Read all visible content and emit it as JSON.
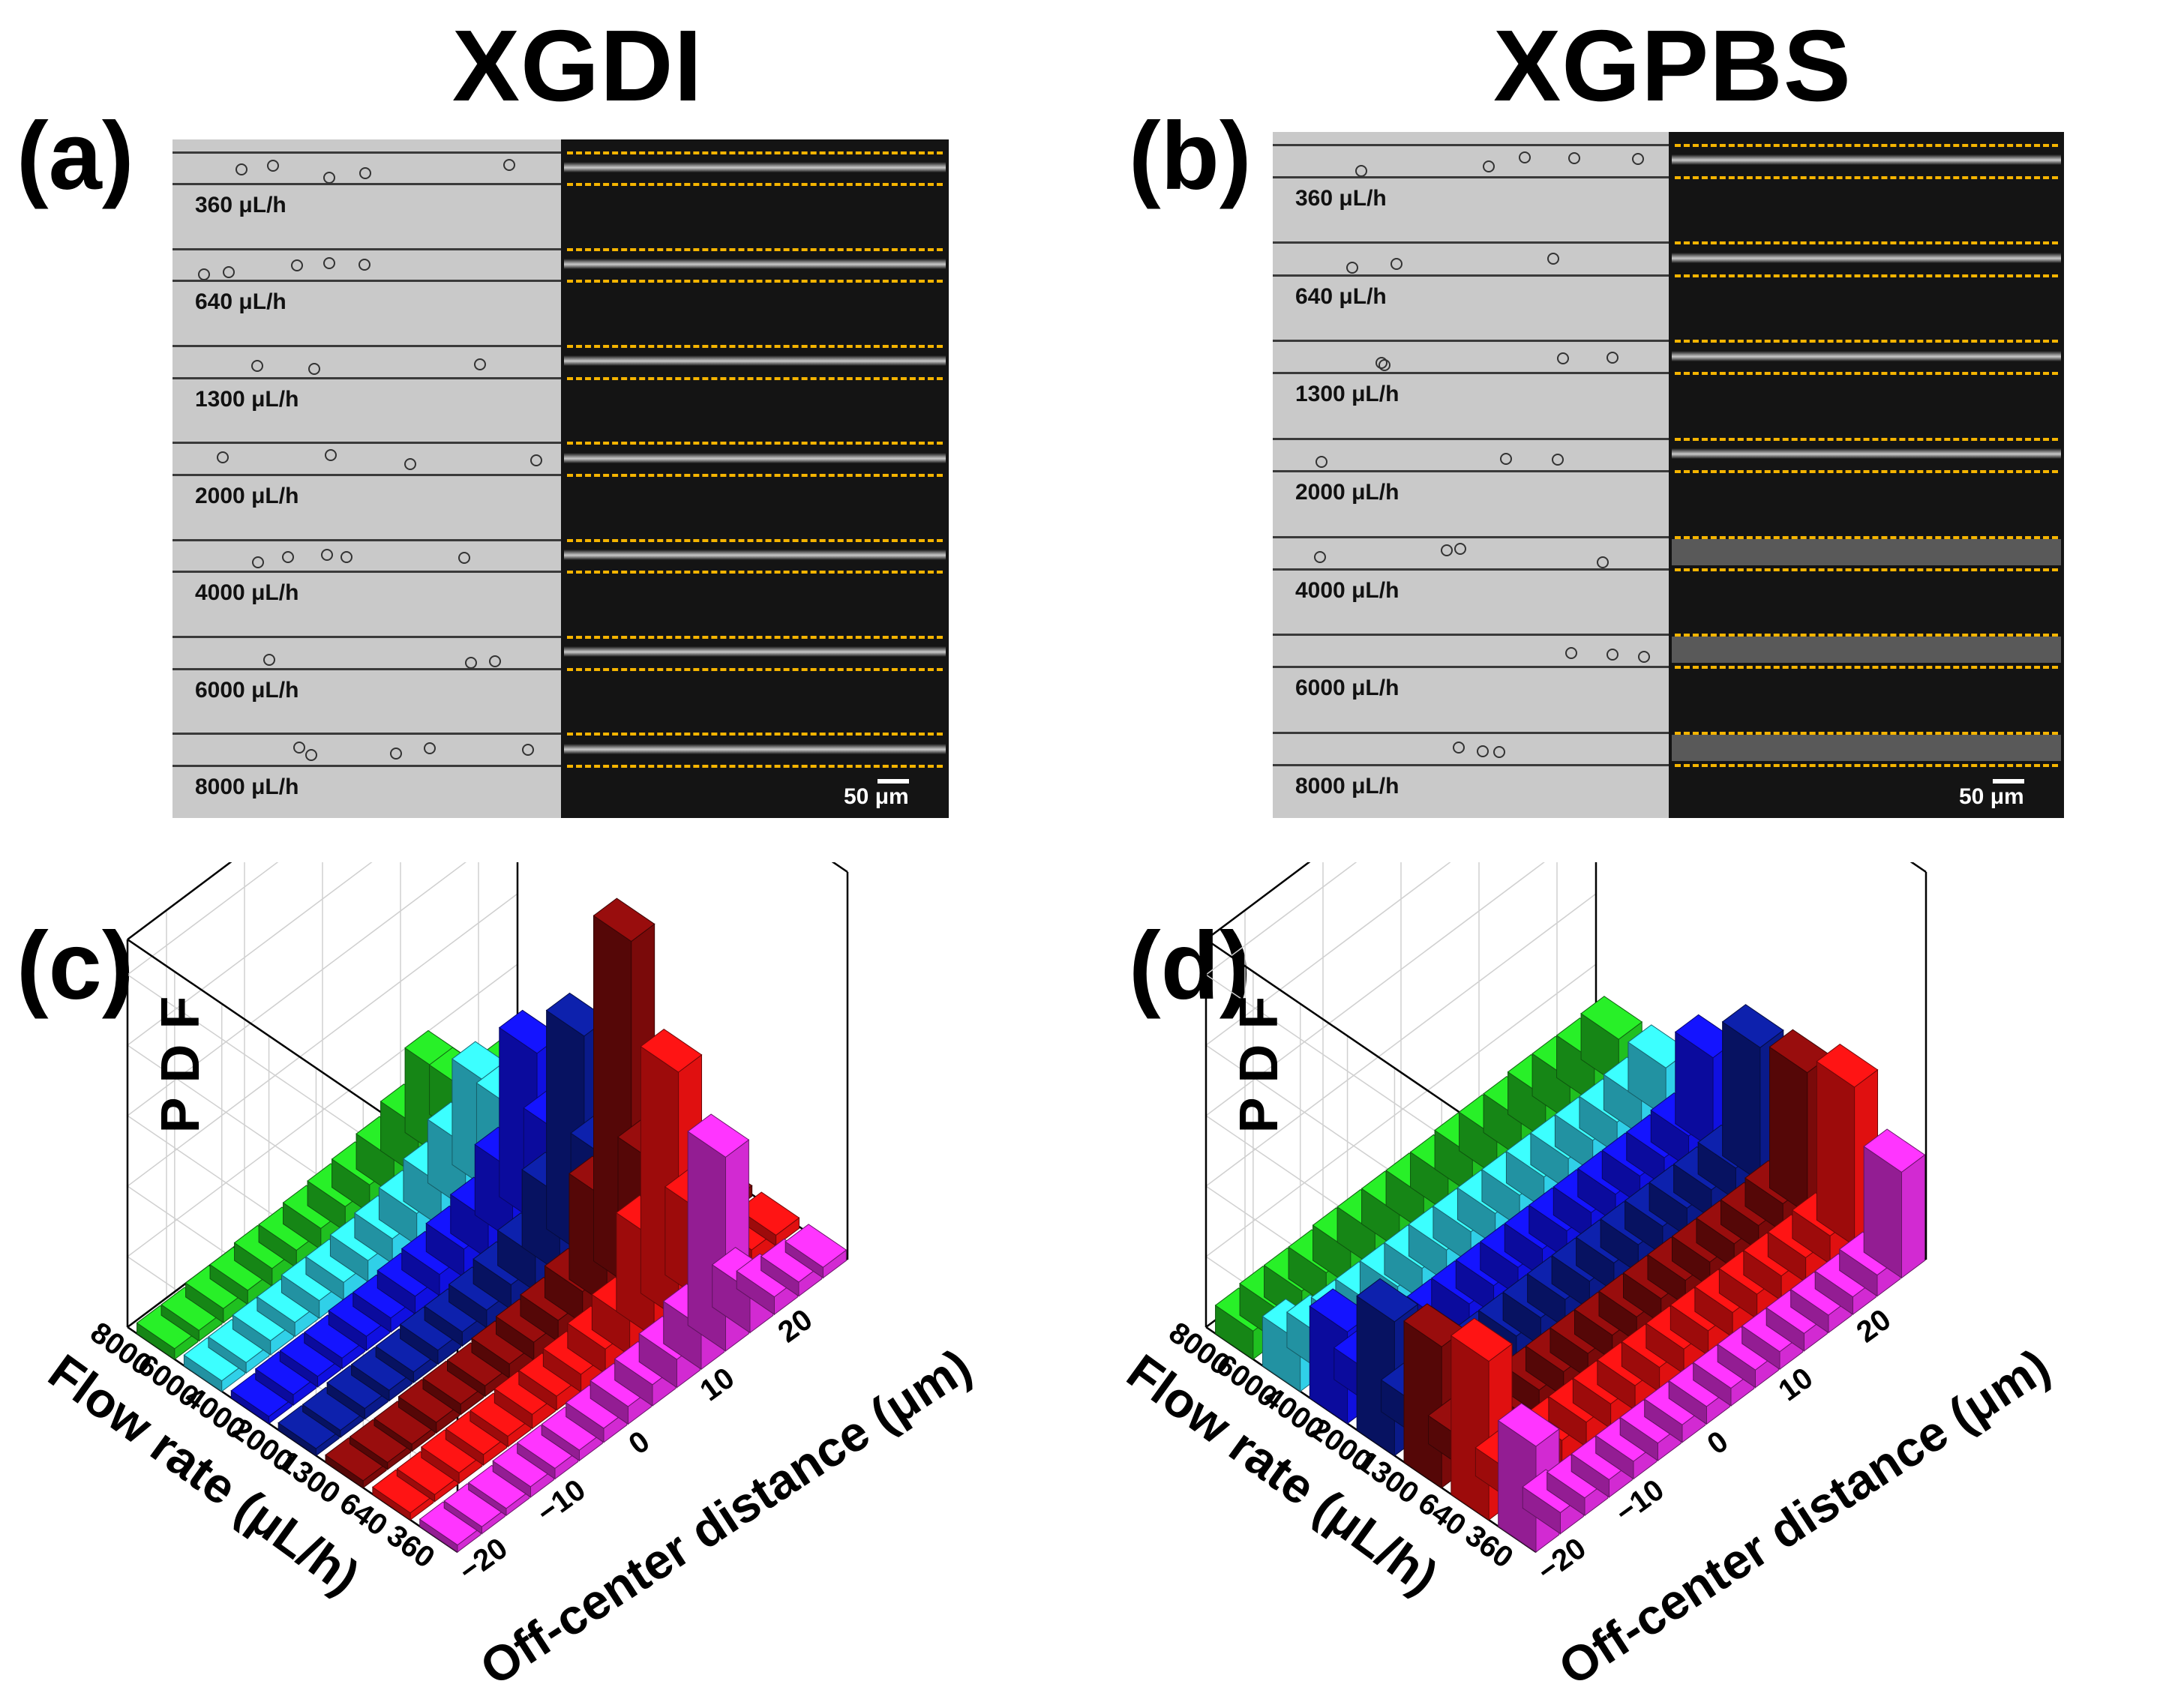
{
  "column_titles": [
    "XGDI",
    "XGPBS"
  ],
  "panel_labels": {
    "a": "(a)",
    "b": "(b)",
    "c": "(c)",
    "d": "(d)"
  },
  "micrographs": {
    "flow_labels": [
      "360 μL/h",
      "640 μL/h",
      "1300 μL/h",
      "2000 μL/h",
      "4000 μL/h",
      "6000 μL/h",
      "8000 μL/h"
    ],
    "scale_bar": "50 μm"
  },
  "chart_data": [
    {
      "type": "3d-bar",
      "panel": "(c)",
      "zlabel": "P D F",
      "ylabel": "Flow rate (μL/h)",
      "xlabel": "Off-center distance (μm)",
      "flow_rate_ticks": [
        "8000",
        "6000",
        "4000",
        "2000",
        "1300",
        "640",
        "360"
      ],
      "distance_ticks": [
        "−20",
        "−10",
        "0",
        "10",
        "20"
      ],
      "series": [
        {
          "name": "360",
          "color": "#d22ad2",
          "values": [
            0.02,
            0.02,
            0.02,
            0.03,
            0.03,
            0.03,
            0.04,
            0.05,
            0.06,
            0.08,
            0.12,
            0.55,
            0.12,
            0.05,
            0.04,
            0.03
          ]
        },
        {
          "name": "640",
          "color": "#e01010",
          "values": [
            0.02,
            0.02,
            0.03,
            0.03,
            0.03,
            0.04,
            0.04,
            0.05,
            0.07,
            0.1,
            0.28,
            0.7,
            0.25,
            0.06,
            0.04,
            0.03
          ]
        },
        {
          "name": "1300",
          "color": "#7a0a0a",
          "values": [
            0.02,
            0.02,
            0.02,
            0.03,
            0.03,
            0.03,
            0.04,
            0.05,
            0.06,
            0.09,
            0.3,
            0.98,
            0.3,
            0.06,
            0.04,
            0.03
          ]
        },
        {
          "name": "2000",
          "color": "#0a1a8a",
          "values": [
            0.02,
            0.02,
            0.03,
            0.03,
            0.03,
            0.04,
            0.04,
            0.05,
            0.07,
            0.1,
            0.22,
            0.62,
            0.22,
            0.06,
            0.04,
            0.03
          ]
        },
        {
          "name": "4000",
          "color": "#1010e0",
          "values": [
            0.02,
            0.03,
            0.03,
            0.03,
            0.04,
            0.04,
            0.05,
            0.06,
            0.08,
            0.11,
            0.2,
            0.48,
            0.2,
            0.07,
            0.05,
            0.04
          ]
        },
        {
          "name": "6000",
          "color": "#30d0e8",
          "values": [
            0.03,
            0.03,
            0.04,
            0.04,
            0.05,
            0.05,
            0.06,
            0.07,
            0.09,
            0.12,
            0.18,
            0.3,
            0.18,
            0.08,
            0.06,
            0.05
          ]
        },
        {
          "name": "8000",
          "color": "#20c020",
          "values": [
            0.03,
            0.03,
            0.04,
            0.04,
            0.05,
            0.05,
            0.06,
            0.07,
            0.08,
            0.1,
            0.14,
            0.24,
            0.14,
            0.08,
            0.06,
            0.05
          ]
        }
      ]
    },
    {
      "type": "3d-bar",
      "panel": "(d)",
      "zlabel": "P D F",
      "ylabel": "Flow rate (μL/h)",
      "xlabel": "Off-center distance (μm)",
      "flow_rate_ticks": [
        "8000",
        "6000",
        "4000",
        "2000",
        "1300",
        "640",
        "360"
      ],
      "distance_ticks": [
        "−20",
        "−10",
        "0",
        "10",
        "20"
      ],
      "series": [
        {
          "name": "360",
          "color": "#d22ad2",
          "values": [
            0.3,
            0.06,
            0.05,
            0.05,
            0.05,
            0.05,
            0.05,
            0.05,
            0.05,
            0.05,
            0.05,
            0.05,
            0.05,
            0.05,
            0.06,
            0.3
          ]
        },
        {
          "name": "640",
          "color": "#e01010",
          "values": [
            0.45,
            0.08,
            0.07,
            0.07,
            0.07,
            0.07,
            0.07,
            0.07,
            0.07,
            0.07,
            0.07,
            0.07,
            0.07,
            0.07,
            0.08,
            0.45
          ]
        },
        {
          "name": "1300",
          "color": "#7a0a0a",
          "values": [
            0.4,
            0.08,
            0.07,
            0.07,
            0.07,
            0.07,
            0.07,
            0.07,
            0.07,
            0.07,
            0.07,
            0.07,
            0.07,
            0.07,
            0.08,
            0.4
          ]
        },
        {
          "name": "2000",
          "color": "#0a1a8a",
          "values": [
            0.38,
            0.09,
            0.08,
            0.08,
            0.08,
            0.08,
            0.08,
            0.08,
            0.08,
            0.08,
            0.08,
            0.08,
            0.08,
            0.08,
            0.09,
            0.38
          ]
        },
        {
          "name": "4000",
          "color": "#1010e0",
          "values": [
            0.26,
            0.09,
            0.08,
            0.08,
            0.08,
            0.08,
            0.08,
            0.08,
            0.08,
            0.08,
            0.08,
            0.08,
            0.08,
            0.08,
            0.09,
            0.26
          ]
        },
        {
          "name": "6000",
          "color": "#30d0e8",
          "values": [
            0.14,
            0.1,
            0.09,
            0.09,
            0.09,
            0.09,
            0.09,
            0.09,
            0.09,
            0.09,
            0.09,
            0.09,
            0.09,
            0.09,
            0.1,
            0.14
          ]
        },
        {
          "name": "8000",
          "color": "#20c020",
          "values": [
            0.08,
            0.09,
            0.09,
            0.09,
            0.1,
            0.1,
            0.1,
            0.1,
            0.1,
            0.11,
            0.11,
            0.11,
            0.12,
            0.12,
            0.12,
            0.13
          ]
        }
      ]
    }
  ]
}
